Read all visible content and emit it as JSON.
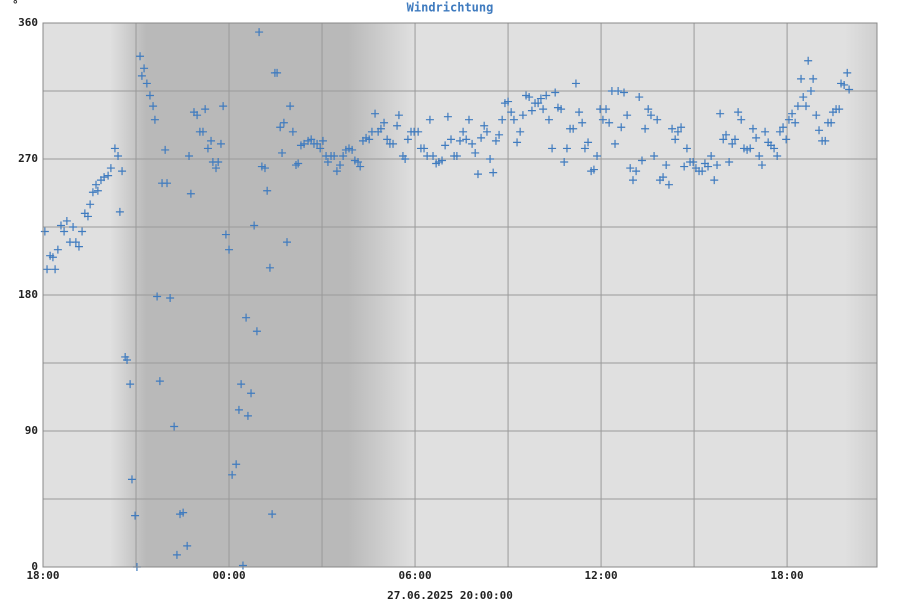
{
  "chart_data": {
    "type": "scatter",
    "title": "Windrichtung",
    "unit_label": "°",
    "x_axis_label": "27.06.2025 20:00:00",
    "color": "#3f7bbf",
    "grid": true,
    "xlim": [
      0,
      26.9
    ],
    "ylim": [
      0,
      360
    ],
    "xticks": [
      {
        "value": 0,
        "label": "18:00"
      },
      {
        "value": 6,
        "label": "00:00"
      },
      {
        "value": 12,
        "label": "06:00"
      },
      {
        "value": 18,
        "label": "12:00"
      },
      {
        "value": 24,
        "label": "18:00"
      }
    ],
    "xgrid": [
      3,
      9,
      15,
      21
    ],
    "yticks": [
      0,
      90,
      180,
      270,
      360
    ],
    "ygrid": [
      45,
      135,
      225,
      315
    ],
    "x": [
      0.06,
      0.13,
      0.23,
      0.32,
      0.39,
      0.48,
      0.58,
      0.68,
      0.77,
      0.87,
      0.97,
      1.06,
      1.16,
      1.26,
      1.35,
      1.45,
      1.52,
      1.61,
      1.71,
      1.77,
      1.87,
      1.97,
      2.1,
      2.19,
      2.32,
      2.42,
      2.48,
      2.55,
      2.65,
      2.71,
      2.81,
      2.87,
      2.97,
      3.03,
      3.13,
      3.19,
      3.26,
      3.35,
      3.45,
      3.55,
      3.61,
      3.68,
      3.77,
      3.84,
      3.94,
      4.0,
      4.1,
      4.23,
      4.32,
      4.42,
      4.52,
      4.65,
      4.71,
      4.77,
      4.87,
      4.97,
      5.06,
      5.16,
      5.23,
      5.32,
      5.42,
      5.48,
      5.58,
      5.65,
      5.74,
      5.81,
      5.9,
      6.0,
      6.1,
      6.23,
      6.32,
      6.39,
      6.45,
      6.55,
      6.61,
      6.71,
      6.81,
      6.9,
      6.97,
      7.06,
      7.16,
      7.23,
      7.32,
      7.39,
      7.48,
      7.55,
      7.65,
      7.71,
      7.77,
      7.87,
      7.97,
      8.06,
      8.16,
      8.23,
      8.32,
      8.42,
      8.55,
      8.65,
      8.74,
      8.84,
      8.94,
      9.03,
      9.13,
      9.19,
      9.29,
      9.39,
      9.48,
      9.58,
      9.68,
      9.77,
      9.87,
      9.97,
      10.06,
      10.16,
      10.23,
      10.32,
      10.42,
      10.52,
      10.61,
      10.71,
      10.81,
      10.9,
      11.0,
      11.1,
      11.19,
      11.29,
      11.42,
      11.48,
      11.61,
      11.68,
      11.77,
      11.87,
      11.97,
      12.1,
      12.19,
      12.29,
      12.39,
      12.48,
      12.58,
      12.68,
      12.77,
      12.87,
      12.97,
      13.06,
      13.16,
      13.26,
      13.35,
      13.45,
      13.55,
      13.65,
      13.74,
      13.84,
      13.94,
      14.03,
      14.13,
      14.23,
      14.32,
      14.42,
      14.52,
      14.61,
      14.71,
      14.81,
      14.9,
      15.0,
      15.1,
      15.19,
      15.29,
      15.39,
      15.48,
      15.58,
      15.68,
      15.77,
      15.87,
      15.97,
      16.06,
      16.13,
      16.23,
      16.32,
      16.42,
      16.52,
      16.61,
      16.71,
      16.81,
      16.9,
      17.0,
      17.1,
      17.19,
      17.29,
      17.39,
      17.48,
      17.58,
      17.68,
      17.77,
      17.87,
      17.97,
      18.06,
      18.16,
      18.26,
      18.35,
      18.45,
      18.55,
      18.65,
      18.74,
      18.84,
      18.94,
      19.03,
      19.13,
      19.23,
      19.32,
      19.42,
      19.52,
      19.61,
      19.71,
      19.81,
      19.9,
      20.0,
      20.1,
      20.19,
      20.29,
      20.39,
      20.48,
      20.58,
      20.68,
      20.77,
      20.87,
      20.97,
      21.06,
      21.16,
      21.26,
      21.35,
      21.45,
      21.55,
      21.65,
      21.74,
      21.84,
      21.94,
      22.03,
      22.13,
      22.23,
      22.32,
      22.42,
      22.52,
      22.61,
      22.71,
      22.81,
      22.9,
      23.0,
      23.1,
      23.19,
      23.29,
      23.39,
      23.48,
      23.58,
      23.68,
      23.77,
      23.87,
      23.97,
      24.06,
      24.16,
      24.26,
      24.35,
      24.45,
      24.52,
      24.61,
      24.68,
      24.77,
      24.84,
      24.94,
      25.03,
      25.13,
      25.23,
      25.32,
      25.42,
      25.48,
      25.58,
      25.68,
      25.74,
      25.84,
      25.94,
      26.0
    ],
    "values": [
      222,
      197,
      206,
      205,
      197,
      210,
      226,
      222,
      229,
      215,
      225,
      215,
      212,
      222,
      234,
      232,
      240,
      248,
      253,
      249,
      256,
      258,
      259,
      264,
      277,
      272,
      235,
      262,
      139,
      137,
      121,
      58,
      34,
      0,
      338,
      325,
      330,
      320,
      312,
      305,
      296,
      179,
      123,
      254,
      276,
      254,
      178,
      93,
      8,
      35,
      36,
      14,
      272,
      247,
      301,
      299,
      288,
      288,
      303,
      277,
      282,
      268,
      264,
      268,
      280,
      305,
      220,
      210,
      61,
      68,
      104,
      121,
      1,
      165,
      100,
      115,
      226,
      156,
      354,
      265,
      264,
      249,
      198,
      35,
      327,
      327,
      291,
      274,
      294,
      215,
      305,
      288,
      266,
      267,
      279,
      280,
      282,
      283,
      280,
      280,
      277,
      282,
      272,
      268,
      272,
      272,
      262,
      266,
      272,
      276,
      277,
      276,
      269,
      268,
      265,
      282,
      284,
      283,
      288,
      300,
      288,
      290,
      294,
      283,
      280,
      280,
      292,
      299,
      272,
      270,
      283,
      288,
      288,
      288,
      277,
      277,
      272,
      296,
      272,
      267,
      268,
      269,
      279,
      298,
      283,
      272,
      272,
      282,
      288,
      283,
      296,
      280,
      274,
      260,
      284,
      292,
      288,
      270,
      261,
      282,
      286,
      296,
      307,
      308,
      301,
      296,
      281,
      288,
      299,
      312,
      311,
      302,
      307,
      307,
      310,
      303,
      312,
      296,
      277,
      314,
      304,
      303,
      268,
      277,
      290,
      290,
      320,
      301,
      294,
      277,
      281,
      262,
      263,
      272,
      303,
      296,
      303,
      294,
      315,
      280,
      315,
      291,
      314,
      299,
      264,
      256,
      262,
      311,
      269,
      290,
      303,
      299,
      272,
      296,
      256,
      258,
      266,
      253,
      290,
      283,
      288,
      291,
      265,
      277,
      268,
      268,
      264,
      262,
      262,
      267,
      265,
      272,
      256,
      266,
      300,
      283,
      286,
      268,
      280,
      283,
      301,
      296,
      277,
      276,
      277,
      290,
      284,
      272,
      266,
      288,
      281,
      279,
      277,
      272,
      288,
      291,
      283,
      296,
      300,
      294,
      305,
      323,
      311,
      305,
      335,
      315,
      323,
      299,
      289,
      282,
      282,
      294,
      294,
      301,
      303,
      303,
      320,
      319,
      327,
      316
    ]
  }
}
